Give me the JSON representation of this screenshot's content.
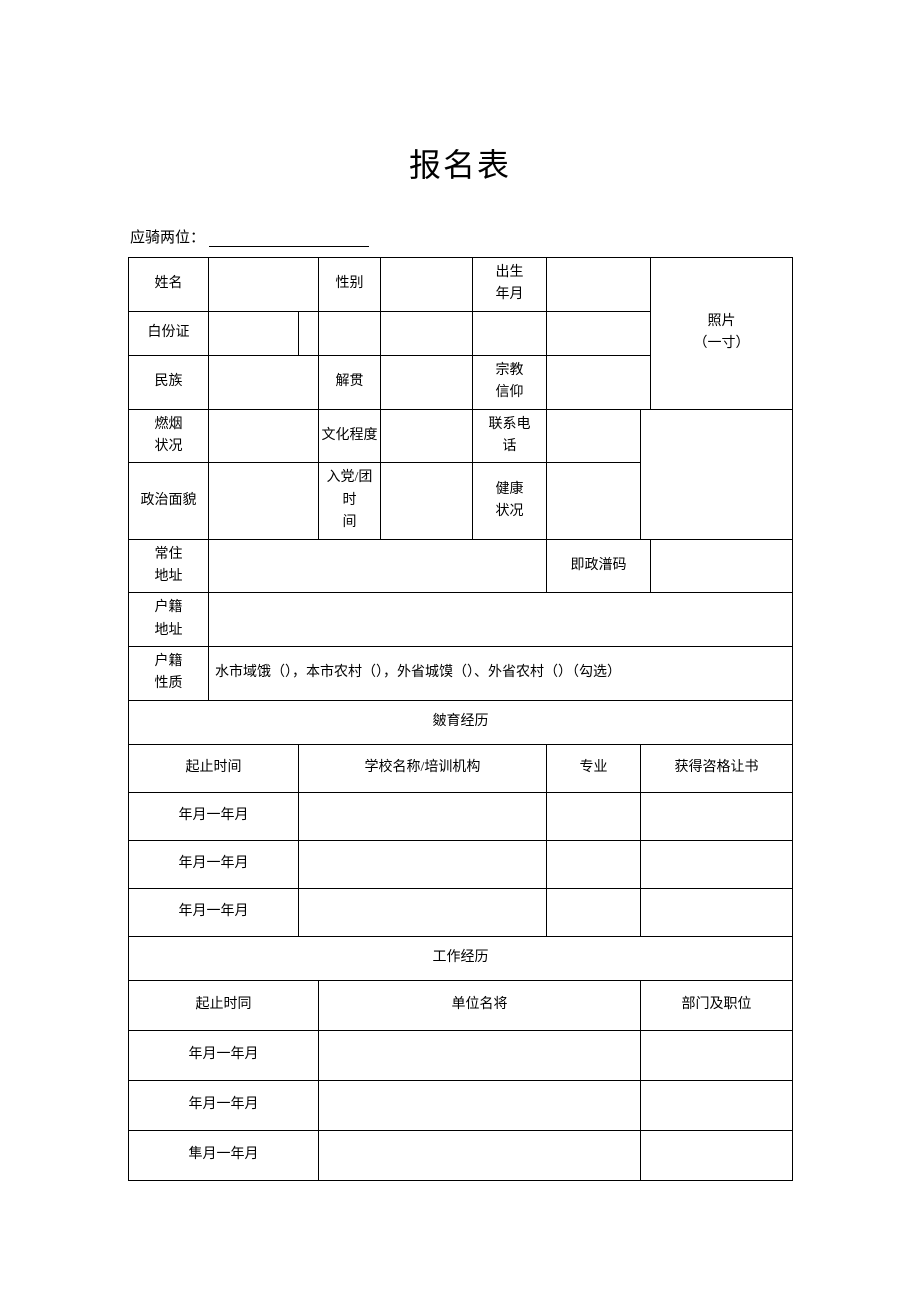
{
  "title": "报名表",
  "subtitle_label": "应骑两位：",
  "photo_label": "照片\n（一寸）",
  "row1": {
    "c1": "姓名",
    "c3": "性别",
    "c5": "出生\n年月"
  },
  "row2": {
    "c1": "白份证"
  },
  "row3": {
    "c1": "民族",
    "c3": "解贯",
    "c5": "宗教\n信仰"
  },
  "row4": {
    "c1": "燃烟\n状况",
    "c3": "文化程度",
    "c5": "联系电\n话"
  },
  "row5": {
    "c1": "政治面貌",
    "c3": "入党/团时\n间",
    "c5": "健康\n状况"
  },
  "row6": {
    "c1": "常住\n地址",
    "c3": "即政潽码"
  },
  "row7": {
    "c1": "户籍\n地址"
  },
  "row8": {
    "c1": "户籍\n性质",
    "c2": "水市域饿（），本市农村（），外省城馍（）、外省农村（）（勾选）"
  },
  "edu": {
    "header": "皴育经历",
    "cols": {
      "c1": "起止时间",
      "c2": "学校名称/培训机构",
      "c3": "专业",
      "c4": "获得咨格让书"
    },
    "rows": [
      "年月一年月",
      "年月一年月",
      "年月一年月"
    ]
  },
  "work": {
    "header": "工作经历",
    "cols": {
      "c1": "起止时同",
      "c2": "单位名将",
      "c3": "部门及职位"
    },
    "rows": [
      "年月一年月",
      "年月一年月",
      "隼月一年月"
    ]
  },
  "colors": {
    "border": "#000000",
    "bg": "#ffffff",
    "text": "#000000"
  }
}
